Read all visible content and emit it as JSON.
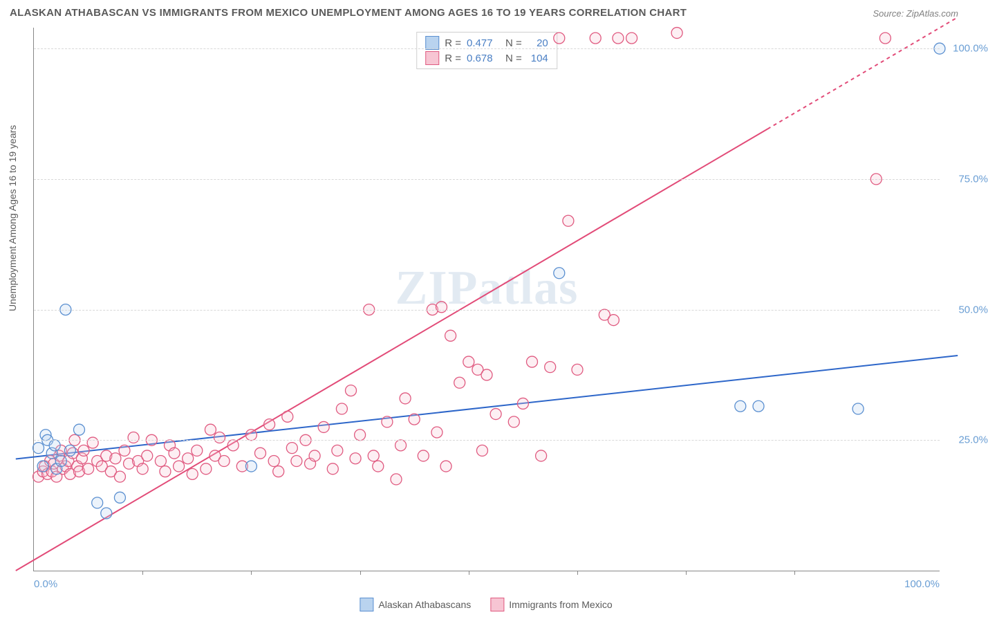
{
  "title": "ALASKAN ATHABASCAN VS IMMIGRANTS FROM MEXICO UNEMPLOYMENT AMONG AGES 16 TO 19 YEARS CORRELATION CHART",
  "source_label": "Source: ",
  "source_value": "ZipAtlas.com",
  "y_axis_label": "Unemployment Among Ages 16 to 19 years",
  "watermark": "ZIPatlas",
  "chart": {
    "type": "scatter",
    "xlim": [
      0,
      100
    ],
    "ylim": [
      0,
      104
    ],
    "x_ticks_major": [
      0,
      100
    ],
    "x_ticks_minor": [
      12,
      24,
      36,
      48,
      60,
      72,
      84
    ],
    "y_ticks": [
      25,
      50,
      75,
      100
    ],
    "y_tick_labels": [
      "25.0%",
      "50.0%",
      "75.0%",
      "100.0%"
    ],
    "x_tick_labels": [
      "0.0%",
      "100.0%"
    ],
    "grid_color": "#d8d8d8",
    "background_color": "#ffffff",
    "marker_radius": 8,
    "marker_stroke_width": 1.3,
    "marker_fill_opacity": 0.28,
    "trendline_width": 2.0
  },
  "stats_legend": {
    "r_label": "R =",
    "n_label": "N =",
    "rows": [
      {
        "fill": "#b9d3ef",
        "stroke": "#5a8fd0",
        "r": "0.477",
        "n": "20"
      },
      {
        "fill": "#f7c5d3",
        "stroke": "#e05a80",
        "r": "0.678",
        "n": "104"
      }
    ]
  },
  "legend_bottom": [
    {
      "label": "Alaskan Athabascans",
      "fill": "#b9d3ef",
      "stroke": "#5a8fd0"
    },
    {
      "label": "Immigrants from Mexico",
      "fill": "#f7c5d3",
      "stroke": "#e05a80"
    }
  ],
  "series": [
    {
      "name": "Alaskan Athabascans",
      "color_fill": "#b9d3ef",
      "color_stroke": "#5a8fd0",
      "trendline": {
        "x1": -2,
        "y1": 21.4,
        "x2": 102,
        "y2": 41.2,
        "color": "#2d66c9",
        "dash_after_x": null
      },
      "points": [
        [
          0.5,
          23.5
        ],
        [
          1.0,
          20.0
        ],
        [
          1.3,
          26.0
        ],
        [
          1.5,
          25.0
        ],
        [
          2.0,
          22.5
        ],
        [
          2.3,
          24.0
        ],
        [
          2.5,
          19.5
        ],
        [
          3.0,
          21.0
        ],
        [
          3.5,
          50.0
        ],
        [
          4.0,
          23.0
        ],
        [
          5.0,
          27.0
        ],
        [
          7.0,
          13.0
        ],
        [
          8.0,
          11.0
        ],
        [
          9.5,
          14.0
        ],
        [
          24.0,
          20.0
        ],
        [
          58.0,
          57.0
        ],
        [
          78.0,
          31.5
        ],
        [
          80.0,
          31.5
        ],
        [
          91.0,
          31.0
        ],
        [
          100.0,
          100.0
        ]
      ]
    },
    {
      "name": "Immigrants from Mexico",
      "color_fill": "#f7c5d3",
      "color_stroke": "#e05a80",
      "trendline": {
        "x1": -2,
        "y1": 0.0,
        "x2": 102,
        "y2": 106.0,
        "color": "#e24b78",
        "dash_after_x": 81
      },
      "points": [
        [
          0.5,
          18.0
        ],
        [
          1.0,
          19.0
        ],
        [
          1.2,
          20.0
        ],
        [
          1.5,
          18.5
        ],
        [
          1.8,
          21.0
        ],
        [
          2.0,
          19.0
        ],
        [
          2.2,
          20.5
        ],
        [
          2.5,
          18.0
        ],
        [
          2.8,
          22.0
        ],
        [
          3.0,
          23.0
        ],
        [
          3.2,
          19.5
        ],
        [
          3.5,
          20.0
        ],
        [
          3.8,
          21.0
        ],
        [
          4.0,
          18.5
        ],
        [
          4.3,
          22.5
        ],
        [
          4.5,
          25.0
        ],
        [
          4.8,
          20.0
        ],
        [
          5.0,
          19.0
        ],
        [
          5.3,
          21.5
        ],
        [
          5.5,
          23.0
        ],
        [
          6.0,
          19.5
        ],
        [
          6.5,
          24.5
        ],
        [
          7.0,
          21.0
        ],
        [
          7.5,
          20.0
        ],
        [
          8.0,
          22.0
        ],
        [
          8.5,
          19.0
        ],
        [
          9.0,
          21.5
        ],
        [
          9.5,
          18.0
        ],
        [
          10.0,
          23.0
        ],
        [
          10.5,
          20.5
        ],
        [
          11.0,
          25.5
        ],
        [
          11.5,
          21.0
        ],
        [
          12.0,
          19.5
        ],
        [
          12.5,
          22.0
        ],
        [
          13.0,
          25.0
        ],
        [
          14.0,
          21.0
        ],
        [
          14.5,
          19.0
        ],
        [
          15.0,
          24.0
        ],
        [
          15.5,
          22.5
        ],
        [
          16.0,
          20.0
        ],
        [
          17.0,
          21.5
        ],
        [
          17.5,
          18.5
        ],
        [
          18.0,
          23.0
        ],
        [
          19.0,
          19.5
        ],
        [
          19.5,
          27.0
        ],
        [
          20.0,
          22.0
        ],
        [
          20.5,
          25.5
        ],
        [
          21.0,
          21.0
        ],
        [
          22.0,
          24.0
        ],
        [
          23.0,
          20.0
        ],
        [
          24.0,
          26.0
        ],
        [
          25.0,
          22.5
        ],
        [
          26.0,
          28.0
        ],
        [
          26.5,
          21.0
        ],
        [
          27.0,
          19.0
        ],
        [
          28.0,
          29.5
        ],
        [
          28.5,
          23.5
        ],
        [
          29.0,
          21.0
        ],
        [
          30.0,
          25.0
        ],
        [
          30.5,
          20.5
        ],
        [
          31.0,
          22.0
        ],
        [
          32.0,
          27.5
        ],
        [
          33.0,
          19.5
        ],
        [
          33.5,
          23.0
        ],
        [
          34.0,
          31.0
        ],
        [
          35.0,
          34.5
        ],
        [
          35.5,
          21.5
        ],
        [
          36.0,
          26.0
        ],
        [
          37.0,
          50.0
        ],
        [
          37.5,
          22.0
        ],
        [
          38.0,
          20.0
        ],
        [
          39.0,
          28.5
        ],
        [
          40.0,
          17.5
        ],
        [
          40.5,
          24.0
        ],
        [
          41.0,
          33.0
        ],
        [
          42.0,
          29.0
        ],
        [
          43.0,
          22.0
        ],
        [
          44.0,
          50.0
        ],
        [
          44.5,
          26.5
        ],
        [
          45.0,
          50.5
        ],
        [
          45.5,
          20.0
        ],
        [
          46.0,
          45.0
        ],
        [
          47.0,
          36.0
        ],
        [
          48.0,
          40.0
        ],
        [
          49.0,
          38.5
        ],
        [
          49.5,
          23.0
        ],
        [
          50.0,
          37.5
        ],
        [
          51.0,
          30.0
        ],
        [
          53.0,
          28.5
        ],
        [
          54.0,
          32.0
        ],
        [
          55.0,
          40.0
        ],
        [
          56.0,
          22.0
        ],
        [
          57.0,
          39.0
        ],
        [
          58.0,
          102.0
        ],
        [
          59.0,
          67.0
        ],
        [
          60.0,
          38.5
        ],
        [
          62.0,
          102.0
        ],
        [
          63.0,
          49.0
        ],
        [
          64.0,
          48.0
        ],
        [
          64.5,
          102.0
        ],
        [
          66.0,
          102.0
        ],
        [
          71.0,
          103.0
        ],
        [
          93.0,
          75.0
        ],
        [
          94.0,
          102.0
        ]
      ]
    }
  ]
}
